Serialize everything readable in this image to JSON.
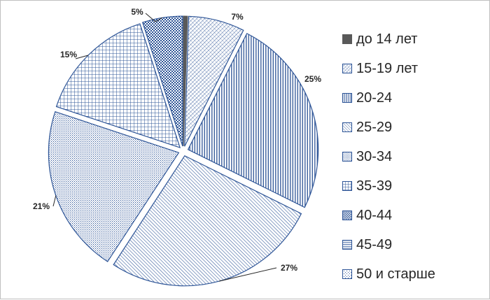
{
  "chart_data": {
    "type": "pie",
    "title": "",
    "categories": [
      "до 14 лет",
      "15-19 лет",
      "20-24",
      "25-29",
      "30-34",
      "35-39",
      "40-44",
      "45-49",
      "50 и старше"
    ],
    "values": [
      0.5,
      7,
      25,
      27,
      21,
      15,
      5,
      0,
      0
    ],
    "data_labels": [
      "",
      "7%",
      "25%",
      "27%",
      "21%",
      "15%",
      "5%",
      "",
      ""
    ],
    "legend_position": "right",
    "start_angle_deg": 0,
    "direction": "clockwise",
    "exploded": true,
    "colors": {
      "pattern_stroke": "#2e5597",
      "pattern_background": "#ffffff",
      "slice_outline": "#2e5597",
      "solid_slice": "#595959",
      "label_text": "#262626",
      "frame_border": "#bfbfbf"
    },
    "fills": [
      "solid",
      "diag-fine",
      "vertical",
      "diag-back",
      "dots",
      "grid",
      "checker",
      "horizontal",
      "sparse-dots"
    ]
  }
}
